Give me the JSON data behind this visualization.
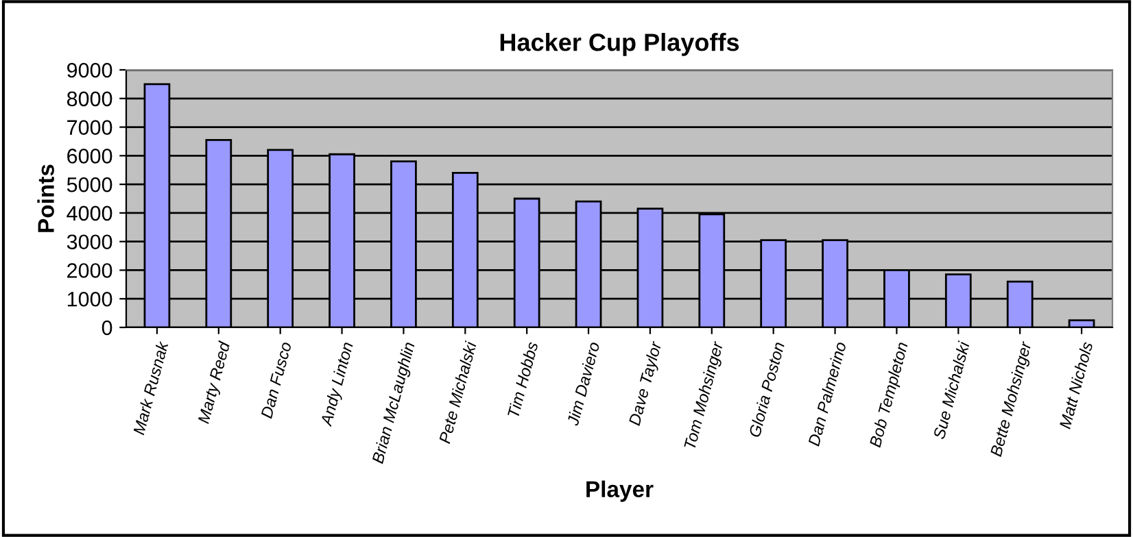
{
  "chart_data": {
    "type": "bar",
    "title": "Hacker Cup Playoffs",
    "xlabel": "Player",
    "ylabel": "Points",
    "categories": [
      "Mark Rusnak",
      "Marty Reed",
      "Dan Fusco",
      "Andy Linton",
      "Brian McLaughlin",
      "Pete Michalski",
      "Tim Hobbs",
      "Jim Daviero",
      "Dave Taylor",
      "Tom Mohsinger",
      "Gloria Poston",
      "Dan Palmerino",
      "Bob Templeton",
      "Sue Michalski",
      "Bette Mohsinger",
      "Matt Nichols"
    ],
    "values": [
      8500,
      6550,
      6200,
      6050,
      5800,
      5400,
      4500,
      4400,
      4150,
      3950,
      3050,
      3050,
      2000,
      1850,
      1600,
      250
    ],
    "color": "#9999ff",
    "ylim": [
      0,
      9000
    ],
    "yticks": [
      0,
      1000,
      2000,
      3000,
      4000,
      5000,
      6000,
      7000,
      8000,
      9000
    ],
    "grid": "y",
    "legend": false
  }
}
